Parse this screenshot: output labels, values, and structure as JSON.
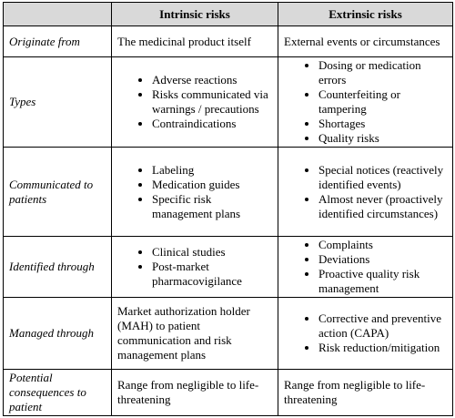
{
  "table": {
    "header": [
      "Intrinsic risks",
      "Extrinsic risks"
    ],
    "rows": [
      {
        "label": "Originate from",
        "cells": [
          {
            "text": "The medicinal product itself"
          },
          {
            "text": "External events or circumstances"
          }
        ]
      },
      {
        "label": "Types",
        "cells": [
          {
            "items": [
              "Adverse reactions",
              "Risks communicated via warnings / precautions",
              "Contraindications"
            ]
          },
          {
            "items": [
              "Dosing or medication errors",
              "Counterfeiting or tampering",
              "Shortages",
              "Quality risks"
            ]
          }
        ]
      },
      {
        "label": "Communicated to patients",
        "cells": [
          {
            "items": [
              "Labeling",
              "Medication guides",
              "Specific risk management plans"
            ]
          },
          {
            "items": [
              "Special notices (reactively identified events)",
              "Almost never (proactively identified circumstances)"
            ]
          }
        ]
      },
      {
        "label": "Identified through",
        "cells": [
          {
            "items": [
              "Clinical studies",
              "Post-market pharmacovigilance"
            ]
          },
          {
            "items": [
              "Complaints",
              "Deviations",
              "Proactive quality risk management"
            ]
          }
        ]
      },
      {
        "label": "Managed through",
        "cells": [
          {
            "text": "Market authorization holder (MAH) to patient communication  and risk management plans"
          },
          {
            "items": [
              "Corrective and preventive action (CAPA)",
              "Risk reduction/mitigation"
            ]
          }
        ]
      },
      {
        "label": "Potential consequences to patient",
        "cells": [
          {
            "text": "Range from negligible to life-threatening"
          },
          {
            "text": "Range from negligible to life-threatening"
          }
        ]
      }
    ]
  }
}
